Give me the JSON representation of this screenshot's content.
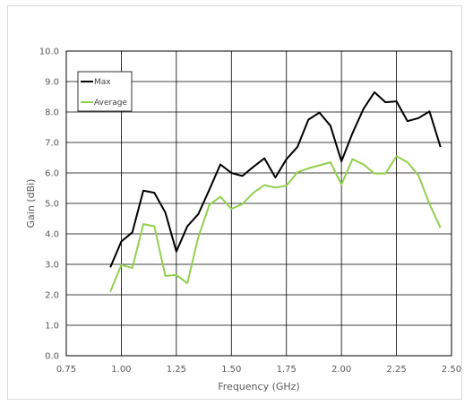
{
  "chart_data": {
    "type": "line",
    "title": "",
    "xlabel": "Frequency (GHz)",
    "ylabel": "Gain (dBi)",
    "xlim": [
      0.75,
      2.5
    ],
    "ylim": [
      0,
      10
    ],
    "xticks": [
      "0.75",
      "1.00",
      "1.25",
      "1.50",
      "1.75",
      "2.00",
      "2.25",
      "2.50"
    ],
    "xtick_values": [
      0.75,
      1.0,
      1.25,
      1.5,
      1.75,
      2.0,
      2.25,
      2.5
    ],
    "yticks": [
      "0.0",
      "1.0",
      "2.0",
      "3.0",
      "4.0",
      "5.0",
      "6.0",
      "7.0",
      "8.0",
      "9.0",
      "10.0"
    ],
    "ytick_values": [
      0,
      1,
      2,
      3,
      4,
      5,
      6,
      7,
      8,
      9,
      10
    ],
    "grid": true,
    "legend_position": "top-left",
    "x": [
      0.95,
      1.0,
      1.05,
      1.1,
      1.15,
      1.2,
      1.25,
      1.3,
      1.35,
      1.4,
      1.45,
      1.5,
      1.55,
      1.6,
      1.65,
      1.7,
      1.75,
      1.8,
      1.85,
      1.9,
      1.95,
      2.0,
      2.05,
      2.1,
      2.15,
      2.2,
      2.25,
      2.3,
      2.35,
      2.4,
      2.45
    ],
    "series": [
      {
        "name": "Max",
        "color": "#000000",
        "values": [
          2.9,
          3.75,
          4.05,
          5.42,
          5.35,
          4.7,
          3.42,
          4.25,
          4.65,
          5.45,
          6.28,
          6.0,
          5.9,
          6.2,
          6.48,
          5.85,
          6.45,
          6.85,
          7.75,
          7.98,
          7.55,
          6.38,
          7.3,
          8.1,
          8.65,
          8.32,
          8.35,
          7.7,
          7.8,
          8.02,
          6.85
        ]
      },
      {
        "name": "Average",
        "color": "#92d050",
        "values": [
          2.1,
          2.98,
          2.88,
          4.32,
          4.25,
          2.62,
          2.65,
          2.38,
          3.9,
          4.95,
          5.22,
          4.82,
          4.98,
          5.35,
          5.6,
          5.52,
          5.58,
          6.02,
          6.15,
          6.25,
          6.35,
          5.62,
          6.45,
          6.28,
          5.98,
          5.98,
          6.55,
          6.35,
          5.92,
          4.98,
          4.2
        ]
      }
    ]
  }
}
